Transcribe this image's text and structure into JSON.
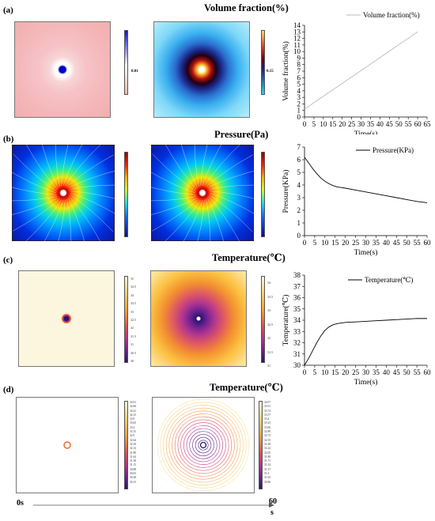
{
  "sections": [
    {
      "label": "(a)",
      "title": "Volume fraction(%)"
    },
    {
      "label": "(b)",
      "title": "Pressure(Pa)"
    },
    {
      "label": "(c)",
      "title": "Temperature(℃)"
    },
    {
      "label": "(d)",
      "title": "Temperature(℃)"
    }
  ],
  "colorbars": {
    "a1": {
      "label": "0.01",
      "colors": [
        "#1515c8",
        "#ffffff",
        "#f4b9a6"
      ]
    },
    "a2": {
      "label": "0.15",
      "colors": [
        "#f7e26a",
        "#e0401a",
        "#1a0010",
        "#2ed0f0"
      ]
    },
    "b1": {
      "ticks": [
        "",
        "",
        "",
        "",
        "",
        "",
        "",
        ""
      ]
    },
    "c1": {
      "ticks": [
        "35",
        "34.5",
        "34",
        "33.5",
        "33",
        "32.5",
        "32",
        "31.5",
        "31",
        "30.5",
        "30"
      ]
    },
    "c2": {
      "ticks": [
        "34",
        "33.5",
        "33",
        "32.5",
        "32",
        "31.5",
        "31"
      ]
    },
    "d1": {
      "ticks": [
        "34.91",
        "34.66",
        "34.41",
        "34.15",
        "33.9",
        "33.65",
        "33.4",
        "33.15",
        "32.9",
        "32.64",
        "32.39",
        "32.14",
        "31.89",
        "31.64",
        "31.38",
        "31.13",
        "30.88",
        "30.63",
        "30.38",
        "30.13"
      ]
    },
    "d2": {
      "ticks": [
        "34.07",
        "33.91",
        "33.74",
        "33.57",
        "33.4",
        "33.23",
        "33.06",
        "32.89",
        "32.72",
        "32.55",
        "32.38",
        "32.22",
        "32.05",
        "31.88",
        "31.71",
        "31.54",
        "31.37",
        "31.2",
        "31.03",
        "30.86"
      ]
    }
  },
  "timeline": {
    "start": "0s",
    "end_num": "60",
    "end_unit": "s"
  },
  "chart_data": [
    {
      "type": "line",
      "series": [
        {
          "name": "Volume fraction(%)",
          "x": [
            0,
            60
          ],
          "y": [
            1.2,
            13.0
          ]
        }
      ],
      "xlabel": "Time(s)",
      "ylabel": "Volume fraction(%)",
      "xlim": [
        0,
        65
      ],
      "ylim": [
        0,
        14
      ],
      "xticks": [
        0,
        5,
        10,
        15,
        20,
        25,
        30,
        35,
        40,
        45,
        50,
        55,
        60,
        65
      ],
      "yticks": [
        0,
        1,
        2,
        3,
        4,
        5,
        6,
        7,
        8,
        9,
        10,
        11,
        12,
        13,
        14
      ],
      "color": "#bbbbbb",
      "legend": "top-right"
    },
    {
      "type": "line",
      "series": [
        {
          "name": "Pressure(KPa)",
          "x": [
            0,
            2,
            4,
            6,
            8,
            10,
            12,
            14,
            16,
            18,
            20,
            25,
            30,
            35,
            40,
            45,
            50,
            55,
            60
          ],
          "y": [
            6.2,
            5.75,
            5.3,
            4.9,
            4.55,
            4.3,
            4.1,
            3.95,
            3.85,
            3.8,
            3.75,
            3.6,
            3.45,
            3.3,
            3.15,
            3.0,
            2.85,
            2.7,
            2.6
          ]
        }
      ],
      "xlabel": "Time(s)",
      "ylabel": "Pressure(KPa)",
      "xlim": [
        0,
        60
      ],
      "ylim": [
        0,
        7
      ],
      "xticks": [
        0,
        5,
        10,
        15,
        20,
        25,
        30,
        35,
        40,
        45,
        50,
        55,
        60
      ],
      "yticks": [
        0,
        1,
        2,
        3,
        4,
        5,
        6,
        7
      ],
      "color": "#000000",
      "legend": "top-right"
    },
    {
      "type": "line",
      "series": [
        {
          "name": "Temperature(℃)",
          "x": [
            0,
            2,
            4,
            6,
            8,
            10,
            12,
            14,
            16,
            18,
            20,
            25,
            30,
            35,
            40,
            45,
            50,
            55,
            60
          ],
          "y": [
            30.0,
            30.6,
            31.3,
            32.0,
            32.6,
            33.1,
            33.4,
            33.6,
            33.7,
            33.75,
            33.8,
            33.85,
            33.9,
            33.95,
            34.0,
            34.05,
            34.1,
            34.15,
            34.15
          ]
        }
      ],
      "xlabel": "Time(s)",
      "ylabel": "Temperature(℃)",
      "xlim": [
        0,
        60
      ],
      "ylim": [
        30,
        38
      ],
      "xticks": [
        0,
        5,
        10,
        15,
        20,
        25,
        30,
        35,
        40,
        45,
        50,
        55,
        60
      ],
      "yticks": [
        30,
        31,
        32,
        33,
        34,
        35,
        36,
        37,
        38
      ],
      "color": "#000000",
      "legend": "top-right"
    }
  ]
}
